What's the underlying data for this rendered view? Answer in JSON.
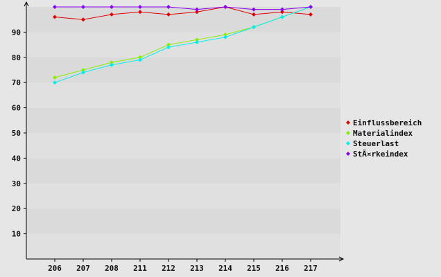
{
  "chart_data": {
    "type": "line",
    "categories": [
      "206",
      "207",
      "208",
      "211",
      "212",
      "213",
      "214",
      "215",
      "216",
      "217"
    ],
    "ylim": [
      0,
      100
    ],
    "yticks": [
      10,
      20,
      30,
      40,
      50,
      60,
      70,
      80,
      90
    ],
    "grid": "horizontal alternating bands",
    "legend_position": "right",
    "series": [
      {
        "name": "Einflussbereich",
        "color": "#e00000",
        "values": [
          96,
          95,
          97,
          98,
          97,
          98,
          100,
          97,
          98,
          97
        ]
      },
      {
        "name": "Materialindex",
        "color": "#88ee00",
        "values": [
          72,
          75,
          78,
          80,
          85,
          87,
          89,
          92,
          96,
          100
        ]
      },
      {
        "name": "Steuerlast",
        "color": "#00eeee",
        "values": [
          70,
          74,
          77,
          79,
          84,
          86,
          88,
          92,
          96,
          100
        ]
      },
      {
        "name": "StÃ¤rkeindex",
        "color": "#8800ee",
        "values": [
          100,
          100,
          100,
          100,
          100,
          99,
          100,
          99,
          99,
          100
        ]
      }
    ]
  }
}
